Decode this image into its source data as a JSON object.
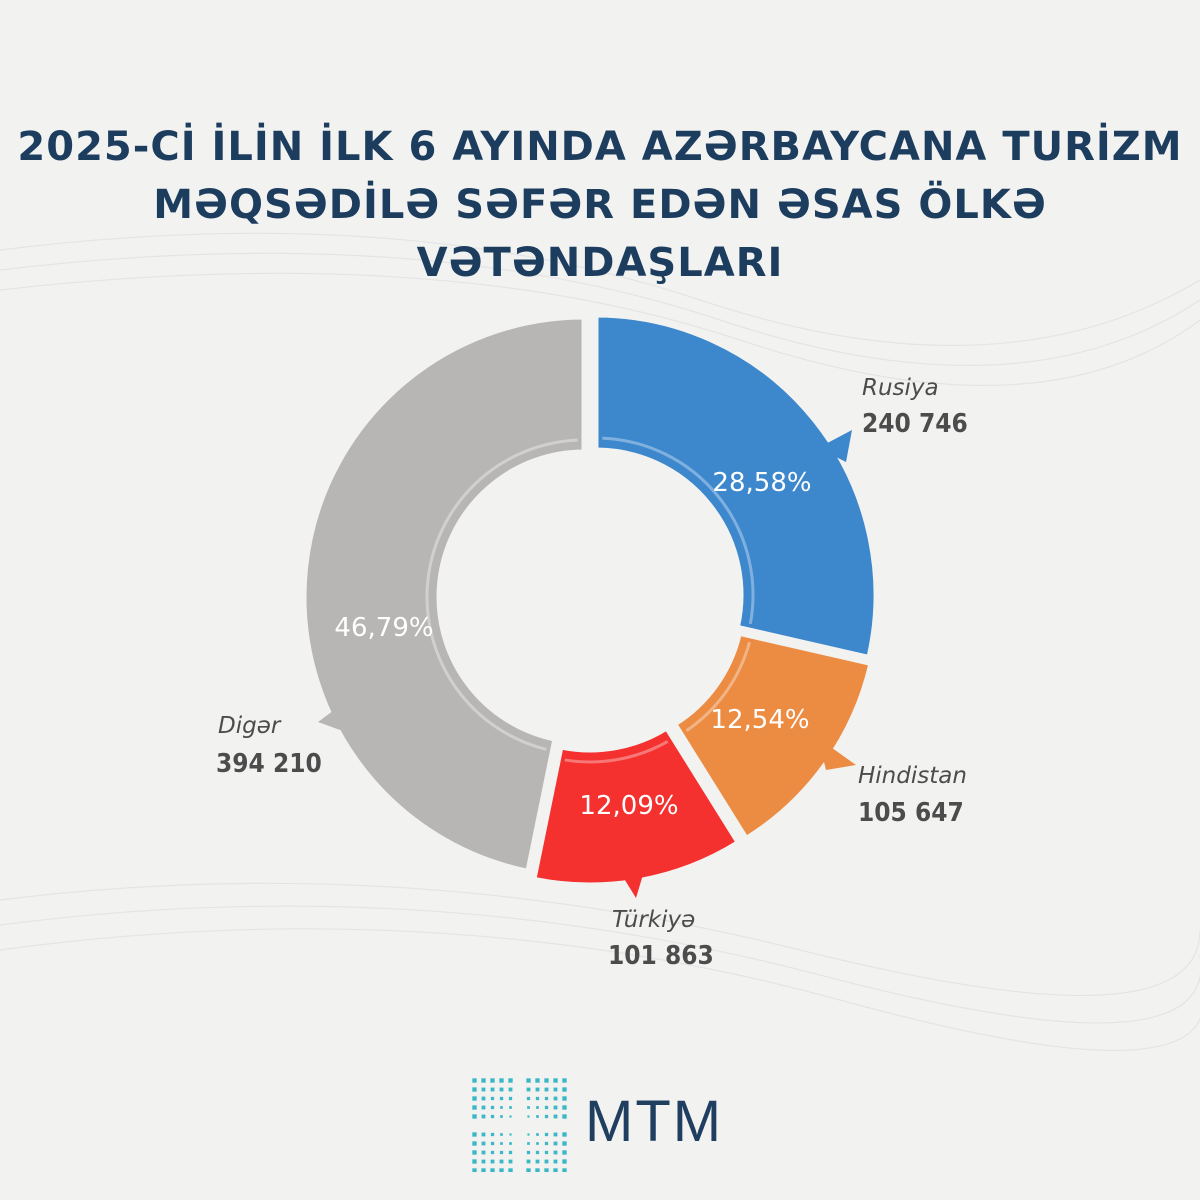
{
  "title": {
    "line1": "2025-Cİ İLİN İLK 6 AYINDA AZƏRBAYCANA TURİZM",
    "line2": "MƏQSƏDİLƏ SƏFƏR EDƏN ƏSAS ÖLKƏ VƏTƏNDAŞLARI"
  },
  "chart_data": {
    "type": "pie",
    "title": "2025-Cİ İLİN İLK 6 AYINDA AZƏRBAYCANA TURİZM MƏQSƏDİLƏ SƏFƏR EDƏN ƏSAS ÖLKƏ VƏTƏNDAŞLARI",
    "donut": true,
    "slices": [
      {
        "name": "Rusiya",
        "value": "240 746",
        "percent_label": "28,58%",
        "percent": 28.58,
        "color": "#3d87cd"
      },
      {
        "name": "Hindistan",
        "value": "105 647",
        "percent_label": "12,54%",
        "percent": 12.54,
        "color": "#ec8c43"
      },
      {
        "name": "Türkiyə",
        "value": "101 863",
        "percent_label": "12,09%",
        "percent": 12.09,
        "color": "#f4312f"
      },
      {
        "name": "Digər",
        "value": "394 210",
        "percent_label": "46,79%",
        "percent": 46.79,
        "color": "#b8b6b5"
      }
    ]
  },
  "logo": {
    "text": "MTM",
    "icon": "mtm-pattern-icon",
    "color": "#1f3e60",
    "accent": "#3ab8c6"
  }
}
